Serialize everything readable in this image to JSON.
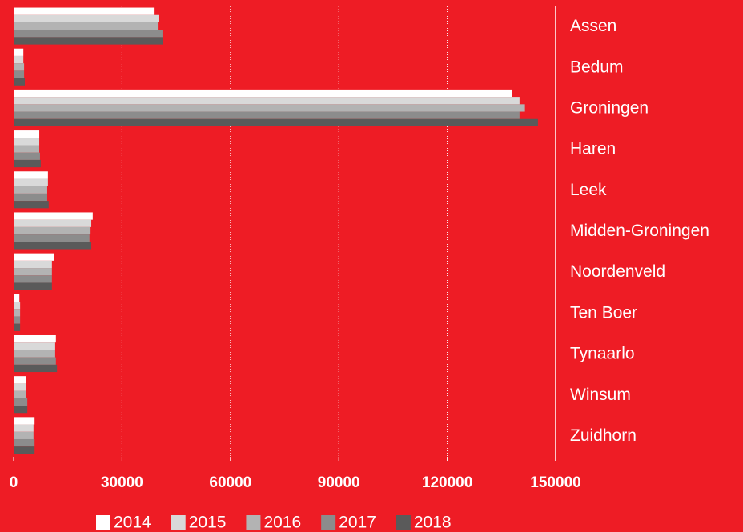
{
  "chart_data": {
    "type": "bar",
    "orientation": "horizontal",
    "categories": [
      "Assen",
      "Bedum",
      "Groningen",
      "Haren",
      "Leek",
      "Midden-Groningen",
      "Noordenveld",
      "Ten Boer",
      "Tynaarlo",
      "Winsum",
      "Zuidhorn"
    ],
    "series": [
      {
        "name": "2014",
        "color": "#ffffff",
        "values": [
          38800,
          2700,
          138000,
          7100,
          9500,
          21900,
          11100,
          1600,
          11700,
          3500,
          5800
        ]
      },
      {
        "name": "2015",
        "color": "#d9d9d9",
        "values": [
          40100,
          2700,
          140000,
          7100,
          9500,
          21500,
          10600,
          1800,
          11500,
          3500,
          5500
        ]
      },
      {
        "name": "2016",
        "color": "#b3b3b3",
        "values": [
          39900,
          2900,
          141500,
          7100,
          9300,
          21300,
          10600,
          1800,
          11500,
          3500,
          5500
        ]
      },
      {
        "name": "2017",
        "color": "#8c8c8c",
        "values": [
          41200,
          2900,
          140000,
          7300,
          9300,
          21000,
          10600,
          1800,
          11700,
          3800,
          5800
        ]
      },
      {
        "name": "2018",
        "color": "#5a5a5a",
        "values": [
          41400,
          3100,
          145100,
          7500,
          9700,
          21500,
          10600,
          1800,
          12000,
          3800,
          5800
        ]
      }
    ],
    "xlim": [
      0,
      150000
    ],
    "xticks": [
      0,
      30000,
      60000,
      90000,
      120000,
      150000
    ],
    "grid": true,
    "legend": "bottom"
  }
}
